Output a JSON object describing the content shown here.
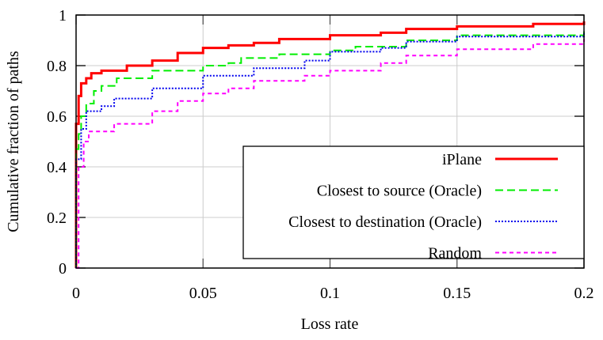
{
  "chart_data": {
    "type": "line",
    "title": "",
    "xlabel": "Loss rate",
    "ylabel": "Cumulative fraction of paths",
    "xlim": [
      0,
      0.2
    ],
    "ylim": [
      0,
      1
    ],
    "xticks": [
      "0",
      "0.05",
      "0.1",
      "0.15",
      "0.2"
    ],
    "xtick_values": [
      0,
      0.05,
      0.1,
      0.15,
      0.2
    ],
    "yticks": [
      "0",
      "0.2",
      "0.4",
      "0.6",
      "0.8",
      "1"
    ],
    "ytick_values": [
      0,
      0.2,
      0.4,
      0.6,
      0.8,
      1
    ],
    "grid": true,
    "legend_position": "bottom-right",
    "series": [
      {
        "name": "iPlane",
        "color": "#ff0000",
        "dash": "",
        "x": [
          0,
          0,
          0.001,
          0.002,
          0.004,
          0.006,
          0.01,
          0.02,
          0.03,
          0.04,
          0.05,
          0.06,
          0.07,
          0.08,
          0.1,
          0.12,
          0.13,
          0.15,
          0.18,
          0.2
        ],
        "y": [
          0,
          0.57,
          0.68,
          0.73,
          0.75,
          0.77,
          0.78,
          0.8,
          0.82,
          0.85,
          0.87,
          0.88,
          0.89,
          0.905,
          0.92,
          0.93,
          0.945,
          0.955,
          0.965,
          0.975
        ]
      },
      {
        "name": "Closest to source (Oracle)",
        "color": "#00ee00",
        "dash": "10,5",
        "x": [
          0,
          0,
          0.001,
          0.002,
          0.004,
          0.007,
          0.01,
          0.016,
          0.03,
          0.05,
          0.06,
          0.065,
          0.08,
          0.1,
          0.11,
          0.13,
          0.15,
          0.2
        ],
        "y": [
          0,
          0.47,
          0.53,
          0.6,
          0.65,
          0.7,
          0.72,
          0.75,
          0.78,
          0.8,
          0.81,
          0.83,
          0.845,
          0.86,
          0.875,
          0.9,
          0.92,
          0.94
        ]
      },
      {
        "name": "Closest to destination (Oracle)",
        "color": "#0000ee",
        "dash": "2,2",
        "x": [
          0,
          0,
          0.002,
          0.004,
          0.01,
          0.015,
          0.03,
          0.05,
          0.07,
          0.09,
          0.1,
          0.12,
          0.13,
          0.15,
          0.2
        ],
        "y": [
          0,
          0.43,
          0.55,
          0.62,
          0.64,
          0.67,
          0.71,
          0.76,
          0.79,
          0.82,
          0.855,
          0.87,
          0.895,
          0.915,
          0.935
        ]
      },
      {
        "name": "Random",
        "color": "#ff00ff",
        "dash": "5,4",
        "x": [
          0,
          0.001,
          0.003,
          0.005,
          0.015,
          0.03,
          0.04,
          0.05,
          0.06,
          0.07,
          0.09,
          0.1,
          0.12,
          0.13,
          0.15,
          0.18,
          0.2
        ],
        "y": [
          0,
          0.4,
          0.5,
          0.54,
          0.57,
          0.62,
          0.66,
          0.69,
          0.71,
          0.74,
          0.76,
          0.78,
          0.81,
          0.84,
          0.865,
          0.885,
          0.905
        ]
      }
    ]
  }
}
